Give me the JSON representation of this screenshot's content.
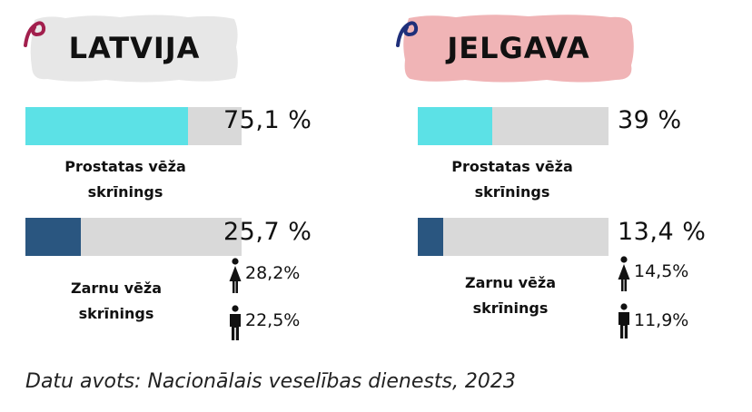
{
  "colors": {
    "latvija_title_bg": "#e7e7e7",
    "jelgava_title_bg": "#f0b4b6",
    "latvija_swirl": "#a21f4d",
    "jelgava_swirl": "#1f2f7a",
    "prostate_bar": "#5ce1e6",
    "colon_bar": "#2a5680",
    "track": "#d9d9d9"
  },
  "icons": {
    "swirl": "swirl-icon",
    "female": "female-icon",
    "male": "male-icon"
  },
  "panels": [
    {
      "title": "LATVIJA",
      "prostate": {
        "label_line1": "Prostatas vēža",
        "label_line2": "skrīnings",
        "value": 75.1,
        "value_text": "75,1 %"
      },
      "colon": {
        "label_line1": "Zarnu vēža",
        "label_line2": "skrīnings",
        "value": 25.7,
        "value_text": "25,7 %",
        "female_value": 28.2,
        "female_text": "28,2%",
        "male_value": 22.5,
        "male_text": "22,5%"
      }
    },
    {
      "title": "JELGAVA",
      "prostate": {
        "label_line1": "Prostatas vēža",
        "label_line2": "skrīnings",
        "value": 39,
        "value_text": "39 %"
      },
      "colon": {
        "label_line1": "Zarnu vēža",
        "label_line2": "skrīnings",
        "value": 13.4,
        "value_text": "13,4 %",
        "female_value": 14.5,
        "female_text": "14,5%",
        "male_value": 11.9,
        "male_text": "11,9%"
      }
    }
  ],
  "source": "Datu avots: Nacionālais veselības dienests, 2023",
  "chart_data": [
    {
      "type": "bar",
      "title": "LATVIJA",
      "categories": [
        "Prostatas vēža skrīnings",
        "Zarnu vēža skrīnings"
      ],
      "values": [
        75.1,
        25.7
      ],
      "ylim": [
        0,
        100
      ],
      "annotations": [
        {
          "category": "Zarnu vēža skrīnings",
          "female": 28.2,
          "male": 22.5
        }
      ]
    },
    {
      "type": "bar",
      "title": "JELGAVA",
      "categories": [
        "Prostatas vēža skrīnings",
        "Zarnu vēža skrīnings"
      ],
      "values": [
        39,
        13.4
      ],
      "ylim": [
        0,
        100
      ],
      "annotations": [
        {
          "category": "Zarnu vēža skrīnings",
          "female": 14.5,
          "male": 11.9
        }
      ]
    }
  ]
}
